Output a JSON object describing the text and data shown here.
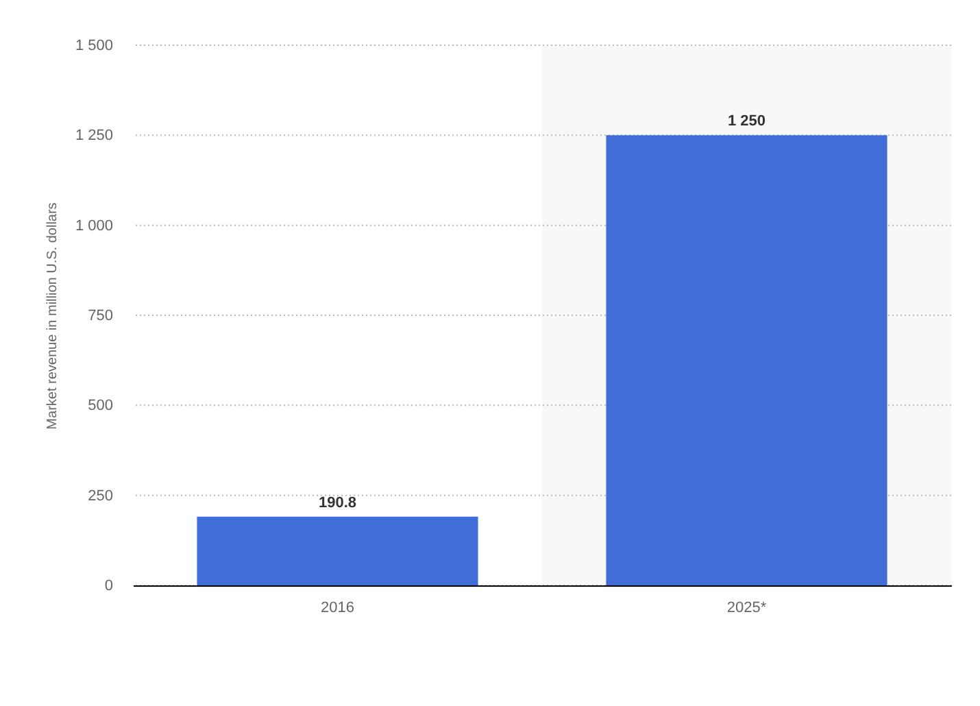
{
  "chart_data": {
    "type": "bar",
    "categories": [
      "2016",
      "2025*"
    ],
    "values": [
      190.8,
      1250
    ],
    "value_labels": [
      "190.8",
      "1 250"
    ],
    "color": "#416dd8",
    "ylabel": "Market revenue in million U.S. dollars",
    "ylim": [
      0,
      1500
    ],
    "yticks": [
      0,
      250,
      500,
      750,
      {
        "value": 1000,
        "label": "1 000"
      },
      {
        "value": 1250,
        "label": "1 250"
      },
      {
        "value": 1500,
        "label": "1 500"
      }
    ],
    "grid": "y",
    "bands": [
      {
        "axis": "x",
        "from": "2025*",
        "to": "2025*",
        "color": "#f8f8f8"
      }
    ]
  }
}
